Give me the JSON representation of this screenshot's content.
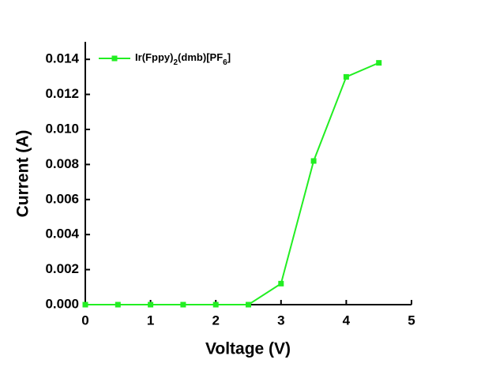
{
  "chart_data": {
    "type": "line",
    "x_label": "Voltage (V)",
    "y_label": "Current (A)",
    "x": [
      0,
      0.5,
      1,
      1.5,
      2,
      2.5,
      3,
      3.5,
      4,
      4.5
    ],
    "series": [
      {
        "name": "Ir(Fppy)2(dmb)[PF6]",
        "color": "#22ee22",
        "values": [
          0,
          0,
          0,
          0,
          0,
          0,
          0.0012,
          0.0082,
          0.013,
          0.0138
        ]
      }
    ],
    "xlim": [
      0,
      5
    ],
    "xticks": [
      0,
      1,
      2,
      3,
      4,
      5
    ],
    "ylim": [
      0,
      0.015
    ],
    "yticks": [
      {
        "value": 0,
        "label": "0.000"
      },
      {
        "value": 0.002,
        "label": "0.002"
      },
      {
        "value": 0.004,
        "label": "0.004"
      },
      {
        "value": 0.006,
        "label": "0.006"
      },
      {
        "value": 0.008,
        "label": "0.008"
      },
      {
        "value": 0.01,
        "label": "0.010"
      },
      {
        "value": 0.012,
        "label": "0.012"
      },
      {
        "value": 0.014,
        "label": "0.014"
      }
    ],
    "legend": "top-left",
    "grid": false
  }
}
